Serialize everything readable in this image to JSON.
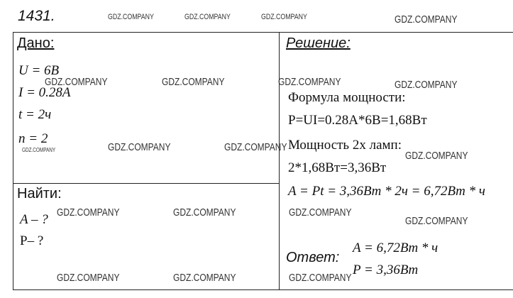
{
  "number": "1431.",
  "given": {
    "title": "Дано:",
    "lines": [
      "U = 6B",
      "I = 0.28A",
      "t = 2ч",
      "n = 2"
    ]
  },
  "find": {
    "title": "Найти:",
    "lines": [
      "A – ?",
      "P– ?"
    ]
  },
  "solution": {
    "title": "Решение:",
    "lines": [
      "Формула мощности:",
      "P=UI=0.28А*6В=1,68Вт",
      "Мощность 2х ламп:",
      "2*1,68Вт=3,36Вт",
      "A = Pt = 3,36Bm * 2ч = 6,72Bm * ч"
    ]
  },
  "answer": {
    "label": "Ответ:",
    "lines": [
      "A = 6,72Bm * ч",
      "P = 3,36Bm"
    ]
  },
  "watermarks": [
    "GDZ.COMPANY",
    "GDZ.COMPANY",
    "GDZ.COMPANY",
    "GDZ.COMPANY",
    "GDZ.COMPANY",
    "GDZ.COMPANY",
    "GDZ.COMPANY",
    "GDZ.COMPANY",
    "GDZ.COMPANY",
    "GDZ.COMPANY",
    "GDZ.COMPANY",
    "GDZ.COMPANY",
    "GDZ.COMPANY",
    "GDZ.COMPANY",
    "GDZ.COMPANY",
    "GDZ.COMPANY",
    "GDZ.COMPANY",
    "GDZ.COMPANY",
    "GDZ.COMPANY"
  ]
}
